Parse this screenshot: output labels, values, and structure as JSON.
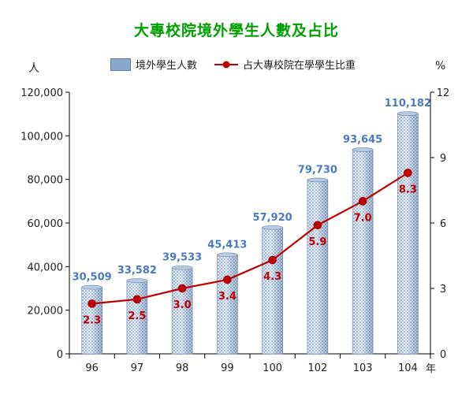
{
  "title": "大專校院境外學生人數及占比",
  "left_unit": "人",
  "right_unit": "%",
  "x_unit": "年",
  "legend": {
    "bar_label": "境外學生人數",
    "line_label": "占大專校院在學學生比重"
  },
  "colors": {
    "title": "#00a000",
    "bar_label": "#4a79c2",
    "line": "#c00000",
    "line_label": "#c00000",
    "axis": "#000000"
  },
  "chart_data": {
    "type": "bar",
    "categories": [
      "96",
      "97",
      "98",
      "99",
      "100",
      "102",
      "103",
      "104"
    ],
    "series": [
      {
        "name": "境外學生人數",
        "type": "bar",
        "axis": "left",
        "values": [
          30509,
          33582,
          39533,
          45413,
          57920,
          79730,
          93645,
          110182
        ],
        "labels": [
          "30,509",
          "33,582",
          "39,533",
          "45,413",
          "57,920",
          "79,730",
          "93,645",
          "110,182"
        ]
      },
      {
        "name": "占大專校院在學學生比重",
        "type": "line",
        "axis": "right",
        "values": [
          2.3,
          2.5,
          3.0,
          3.4,
          4.3,
          5.9,
          7.0,
          8.3
        ],
        "labels": [
          "2.3",
          "2.5",
          "3.0",
          "3.4",
          "4.3",
          "5.9",
          "7.0",
          "8.3"
        ]
      }
    ],
    "y_left": {
      "min": 0,
      "max": 120000,
      "ticks": [
        0,
        20000,
        40000,
        60000,
        80000,
        100000,
        120000
      ],
      "tick_labels": [
        "0",
        "20,000",
        "40,000",
        "60,000",
        "80,000",
        "100,000",
        "120,000"
      ]
    },
    "y_right": {
      "min": 0,
      "max": 12,
      "ticks": [
        0,
        3,
        6,
        9,
        12
      ],
      "tick_labels": [
        "0",
        "3",
        "6",
        "9",
        "12"
      ]
    },
    "grid": false,
    "legend_position": "top"
  }
}
